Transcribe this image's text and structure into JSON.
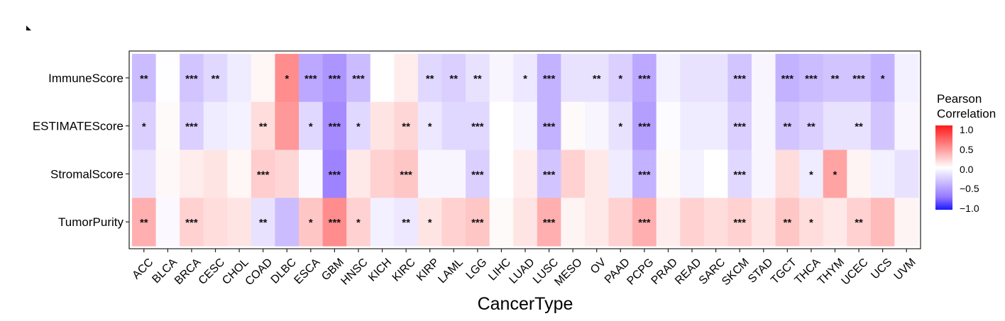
{
  "chart_data": {
    "type": "heatmap",
    "title": "",
    "xlabel": "CancerType",
    "ylabel": "",
    "x_categories": [
      "ACC",
      "BLCA",
      "BRCA",
      "CESC",
      "CHOL",
      "COAD",
      "DLBC",
      "ESCA",
      "GBM",
      "HNSC",
      "KICH",
      "KIRC",
      "KIRP",
      "LAML",
      "LGG",
      "LIHC",
      "LUAD",
      "LUSC",
      "MESO",
      "OV",
      "PAAD",
      "PCPG",
      "PRAD",
      "READ",
      "SARC",
      "SKCM",
      "STAD",
      "TGCT",
      "THCA",
      "THYM",
      "UCEC",
      "UCS",
      "UVM"
    ],
    "y_categories": [
      "ImmuneScore",
      "ESTIMATEScore",
      "StromalScore",
      "TumorPurity"
    ],
    "values": [
      [
        -0.35,
        -0.01,
        -0.3,
        -0.2,
        -0.1,
        0.04,
        0.5,
        -0.45,
        -0.55,
        -0.35,
        0.0,
        0.08,
        -0.2,
        -0.25,
        -0.15,
        -0.05,
        -0.12,
        -0.4,
        -0.15,
        -0.15,
        -0.25,
        -0.45,
        -0.08,
        -0.15,
        -0.15,
        -0.3,
        -0.05,
        -0.4,
        -0.35,
        -0.3,
        -0.3,
        -0.4,
        -0.08
      ],
      [
        -0.25,
        0.02,
        -0.25,
        -0.1,
        -0.07,
        0.15,
        0.45,
        -0.2,
        -0.6,
        -0.2,
        0.12,
        0.18,
        -0.12,
        -0.2,
        -0.2,
        0.0,
        -0.05,
        -0.4,
        0.02,
        -0.05,
        -0.15,
        -0.5,
        -0.02,
        -0.1,
        -0.1,
        -0.25,
        -0.05,
        -0.3,
        -0.25,
        -0.15,
        -0.15,
        -0.3,
        -0.05
      ],
      [
        -0.15,
        0.03,
        0.08,
        0.12,
        0.04,
        0.22,
        0.18,
        -0.03,
        -0.65,
        0.1,
        0.2,
        0.25,
        -0.05,
        -0.05,
        -0.25,
        0.0,
        0.08,
        -0.3,
        0.2,
        0.1,
        -0.1,
        -0.4,
        0.02,
        -0.07,
        0.0,
        -0.2,
        -0.05,
        0.15,
        -0.1,
        0.4,
        0.05,
        -0.08,
        -0.15
      ],
      [
        0.35,
        -0.03,
        0.2,
        0.15,
        0.12,
        -0.15,
        -0.35,
        0.25,
        0.5,
        0.2,
        -0.08,
        -0.12,
        0.12,
        0.2,
        0.25,
        0.02,
        0.12,
        0.35,
        0.05,
        0.1,
        0.2,
        0.35,
        0.08,
        0.2,
        0.15,
        0.2,
        0.12,
        0.25,
        0.15,
        0.1,
        0.2,
        0.3,
        0.05
      ]
    ],
    "significance": [
      [
        "**",
        "",
        "***",
        "**",
        "",
        "",
        "*",
        "***",
        "***",
        "***",
        "",
        "",
        "**",
        "**",
        "**",
        "",
        "*",
        "***",
        "",
        "**",
        "*",
        "***",
        "",
        "",
        "",
        "***",
        "",
        "***",
        "***",
        "**",
        "***",
        "*",
        ""
      ],
      [
        "*",
        "",
        "***",
        "",
        "",
        "**",
        "",
        "*",
        "***",
        "*",
        "",
        "**",
        "*",
        "",
        "***",
        "",
        "",
        "***",
        "",
        "",
        "*",
        "***",
        "",
        "",
        "",
        "***",
        "",
        "**",
        "**",
        "",
        "**",
        "",
        ""
      ],
      [
        "",
        "",
        "",
        "",
        "",
        "***",
        "",
        "",
        "***",
        "",
        "",
        "***",
        "",
        "",
        "***",
        "",
        "",
        "***",
        "",
        "",
        "",
        "***",
        "",
        "",
        "",
        "***",
        "",
        "",
        "*",
        "*",
        "",
        "",
        ""
      ],
      [
        "**",
        "",
        "***",
        "",
        "",
        "**",
        "",
        "*",
        "***",
        "*",
        "",
        "**",
        "*",
        "",
        "***",
        "",
        "",
        "***",
        "",
        "",
        "",
        "***",
        "",
        "",
        "",
        "***",
        "",
        "**",
        "*",
        "",
        "**",
        "",
        ""
      ]
    ],
    "color_scale": {
      "low": -1.0,
      "mid": 0.0,
      "high": 1.0,
      "low_color": "#1a1aff",
      "mid_color": "#ffffff",
      "high_color": "#ff1a1a"
    },
    "legend": {
      "title_lines": [
        "Pearson",
        "Correlation"
      ],
      "ticks": [
        "1.0",
        "0.5",
        "0.0",
        "−0.5",
        "−1.0"
      ],
      "tick_values": [
        1.0,
        0.5,
        0.0,
        -0.5,
        -1.0
      ],
      "placement": "right"
    }
  }
}
